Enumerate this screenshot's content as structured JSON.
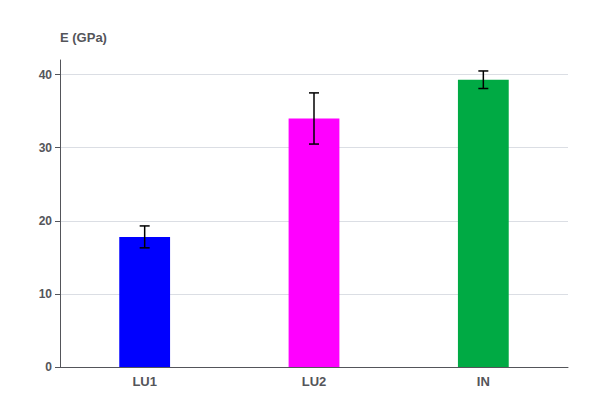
{
  "chart_data": {
    "type": "bar",
    "ylabel": "E (GPa)",
    "categories": [
      "LU1",
      "LU2",
      "IN"
    ],
    "values": [
      17.8,
      34.0,
      39.3
    ],
    "errors": [
      1.5,
      3.5,
      1.2
    ],
    "colors": [
      "#0000FF",
      "#FF00FF",
      "#00AA44"
    ],
    "ylim": [
      0,
      42
    ],
    "yticks": [
      0,
      10,
      20,
      30,
      40
    ],
    "grid": true
  }
}
